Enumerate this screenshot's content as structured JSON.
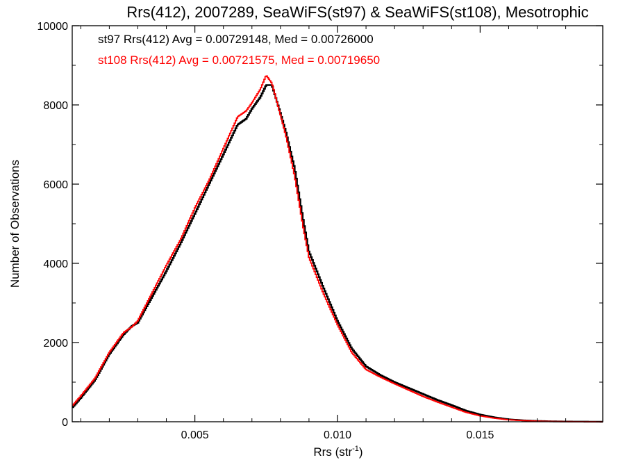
{
  "chart_data": {
    "type": "line",
    "title": "Rrs(412), 2007289, SeaWiFS(st97) & SeaWiFS(st108), Mesotrophic",
    "xlabel": "Rrs (str",
    "xlabel_sup": "-1",
    "xlabel_close": ")",
    "ylabel": "Number of Observations",
    "xlim": [
      0.0007,
      0.0193
    ],
    "ylim": [
      0,
      10000
    ],
    "x_ticks": [
      0.005,
      0.01,
      0.015
    ],
    "x_tick_labels": [
      "0.005",
      "0.010",
      "0.015"
    ],
    "y_ticks": [
      0,
      2000,
      4000,
      6000,
      8000,
      10000
    ],
    "y_tick_labels": [
      "0",
      "2000",
      "4000",
      "6000",
      "8000",
      "10000"
    ],
    "grid": false,
    "annotations": [
      {
        "text": "st97 Rrs(412) Avg = 0.00729148, Med = 0.00726000",
        "color": "#000000"
      },
      {
        "text": "st108 Rrs(412) Avg = 0.00721575, Med = 0.00719650",
        "color": "#ff0000"
      }
    ],
    "series": [
      {
        "name": "st97",
        "color": "#000000",
        "x": [
          0.0007,
          0.001,
          0.0015,
          0.002,
          0.0025,
          0.0028,
          0.003,
          0.0035,
          0.004,
          0.0045,
          0.005,
          0.0055,
          0.006,
          0.0065,
          0.0068,
          0.007,
          0.0073,
          0.0075,
          0.0077,
          0.008,
          0.0082,
          0.0085,
          0.0088,
          0.009,
          0.0095,
          0.01,
          0.0105,
          0.011,
          0.0115,
          0.012,
          0.0125,
          0.013,
          0.0135,
          0.014,
          0.0145,
          0.015,
          0.0155,
          0.016,
          0.0165,
          0.017,
          0.0175,
          0.018,
          0.0185,
          0.0193
        ],
        "values": [
          350,
          600,
          1050,
          1700,
          2200,
          2420,
          2500,
          3150,
          3800,
          4500,
          5250,
          6000,
          6750,
          7500,
          7650,
          7900,
          8200,
          8500,
          8500,
          7800,
          7300,
          6400,
          5100,
          4300,
          3400,
          2550,
          1850,
          1400,
          1180,
          1000,
          850,
          700,
          550,
          420,
          280,
          180,
          110,
          60,
          35,
          20,
          10,
          5,
          3,
          0
        ]
      },
      {
        "name": "st108",
        "color": "#ff0000",
        "x": [
          0.0007,
          0.001,
          0.0015,
          0.002,
          0.0025,
          0.0028,
          0.003,
          0.0035,
          0.004,
          0.0045,
          0.005,
          0.0055,
          0.006,
          0.0065,
          0.0068,
          0.007,
          0.0073,
          0.0075,
          0.0077,
          0.008,
          0.0082,
          0.0085,
          0.0088,
          0.009,
          0.0095,
          0.01,
          0.0105,
          0.011,
          0.0115,
          0.012,
          0.0125,
          0.013,
          0.0135,
          0.014,
          0.0145,
          0.015,
          0.0155,
          0.016,
          0.0165,
          0.017,
          0.0175,
          0.018,
          0.0185,
          0.0193
        ],
        "values": [
          400,
          650,
          1100,
          1750,
          2250,
          2400,
          2550,
          3250,
          3950,
          4600,
          5400,
          6100,
          6900,
          7700,
          7850,
          8050,
          8400,
          8750,
          8550,
          7750,
          7200,
          6200,
          4900,
          4150,
          3250,
          2450,
          1750,
          1320,
          1130,
          960,
          800,
          640,
          500,
          370,
          240,
          150,
          90,
          50,
          30,
          15,
          8,
          4,
          2,
          0
        ]
      }
    ]
  }
}
